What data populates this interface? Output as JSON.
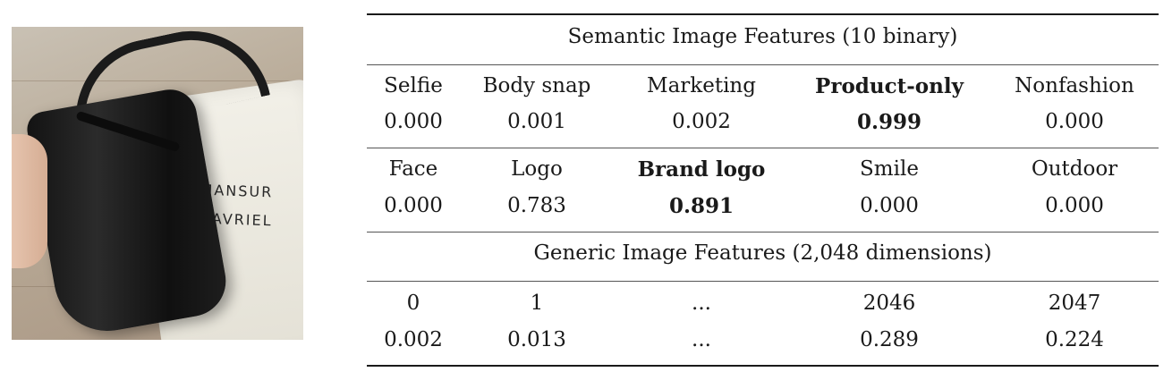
{
  "photo": {
    "brand_line1": "MANSUR",
    "brand_line2": "GAVRIEL"
  },
  "table": {
    "semantic_header": "Semantic Image Features (10 binary)",
    "semantic_row1": {
      "labels": [
        "Selfie",
        "Body snap",
        "Marketing",
        "Product-only",
        "Nonfashion"
      ],
      "values": [
        "0.000",
        "0.001",
        "0.002",
        "0.999",
        "0.000"
      ]
    },
    "semantic_row2": {
      "labels": [
        "Face",
        "Logo",
        "Brand logo",
        "Smile",
        "Outdoor"
      ],
      "values": [
        "0.000",
        "0.783",
        "0.891",
        "0.000",
        "0.000"
      ]
    },
    "generic_header": "Generic Image Features (2,048 dimensions)",
    "generic_row": {
      "labels": [
        "0",
        "1",
        "...",
        "2046",
        "2047"
      ],
      "values": [
        "0.002",
        "0.013",
        "...",
        "0.289",
        "0.224"
      ]
    }
  }
}
